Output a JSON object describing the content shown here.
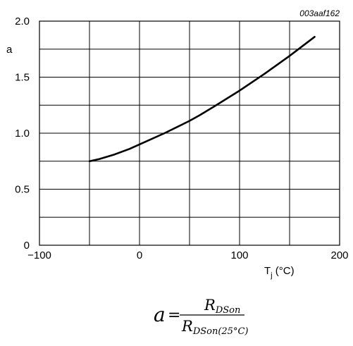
{
  "chart_data": {
    "type": "line",
    "figure_code": "003aaf162",
    "xlabel": {
      "base": "T",
      "sub": "j",
      "unit": " (°C)"
    },
    "ylabel": "a",
    "xlim": [
      -100,
      200
    ],
    "ylim": [
      0,
      2.0
    ],
    "xticks": [
      -100,
      0,
      100,
      200
    ],
    "xtick_labels": [
      "−100",
      "0",
      "100",
      "200"
    ],
    "yticks": [
      0,
      0.5,
      1.0,
      1.5,
      2.0
    ],
    "ytick_labels": [
      "0",
      "0.5",
      "1.0",
      "1.5",
      "2.0"
    ],
    "grid": {
      "x_step": 50,
      "y_step": 0.25
    },
    "series": [
      {
        "color": "#000000",
        "x": [
          -50,
          -40,
          -25,
          -10,
          0,
          25,
          50,
          60,
          75,
          100,
          125,
          150,
          175
        ],
        "y": [
          0.75,
          0.77,
          0.81,
          0.86,
          0.9,
          1.0,
          1.11,
          1.16,
          1.24,
          1.38,
          1.53,
          1.69,
          1.86
        ]
      }
    ]
  },
  "formula": {
    "lhs": "a",
    "eq": "=",
    "num_base": "R",
    "num_sub": "DSon",
    "den_base": "R",
    "den_sub": "DSon(25°C)"
  }
}
